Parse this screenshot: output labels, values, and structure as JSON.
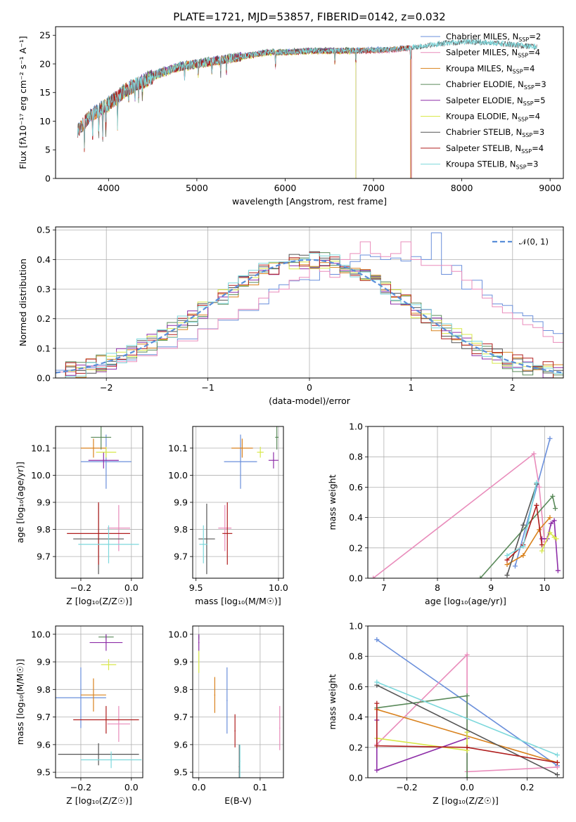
{
  "colors": {
    "Chabrier MILES": "#6a8fdb",
    "Salpeter MILES": "#e98cbb",
    "Kroupa MILES": "#d9821e",
    "Chabrier ELODIE": "#5a8a5a",
    "Salpeter ELODIE": "#8e2fa8",
    "Kroupa ELODIE": "#d8e84a",
    "Chabrier STELIB": "#555555",
    "Salpeter STELIB": "#b01f1f",
    "Kroupa STELIB": "#7dd8dc"
  },
  "chart_data": [
    {
      "id": "spectrum",
      "type": "line",
      "title": "PLATE=1721, MJD=53857, FIBERID=0142, z=0.032",
      "xlabel": "wavelength [Angstrom, rest frame]",
      "ylabel": "Flux [fλ10⁻¹⁷ erg cm⁻² s⁻¹ A⁻¹]",
      "xlim": [
        3400,
        9150
      ],
      "ylim": [
        0,
        26.5
      ],
      "xticks": [
        4000,
        5000,
        6000,
        7000,
        8000,
        9000
      ],
      "yticks": [
        0,
        5,
        10,
        15,
        20,
        25
      ],
      "legend_loc": "upper right",
      "legend": [
        {
          "label": "Chabrier MILES, N",
          "sub": "SSP",
          "tail": "=2",
          "model": "Chabrier MILES"
        },
        {
          "label": "Salpeter MILES, N",
          "sub": "SSP",
          "tail": "=4",
          "model": "Salpeter MILES"
        },
        {
          "label": "Kroupa MILES, N",
          "sub": "SSP",
          "tail": "=4",
          "model": "Kroupa MILES"
        },
        {
          "label": "Chabrier ELODIE, N",
          "sub": "SSP",
          "tail": "=3",
          "model": "Chabrier ELODIE"
        },
        {
          "label": "Salpeter ELODIE, N",
          "sub": "SSP",
          "tail": "=5",
          "model": "Salpeter ELODIE"
        },
        {
          "label": "Kroupa ELODIE, N",
          "sub": "SSP",
          "tail": "=4",
          "model": "Kroupa ELODIE"
        },
        {
          "label": "Chabrier STELIB, N",
          "sub": "SSP",
          "tail": "=3",
          "model": "Chabrier STELIB"
        },
        {
          "label": "Salpeter STELIB, N",
          "sub": "SSP",
          "tail": "=4",
          "model": "Salpeter STELIB"
        },
        {
          "label": "Kroupa STELIB, N",
          "sub": "SSP",
          "tail": "=3",
          "model": "Kroupa STELIB"
        }
      ],
      "continuum": {
        "x": [
          3650,
          3800,
          4000,
          4200,
          4400,
          4600,
          4800,
          5000,
          5200,
          5400,
          5600,
          5800,
          6000,
          6200,
          6400,
          6600,
          6800,
          7000,
          7200,
          7400,
          7600,
          7800,
          8000,
          8200,
          8400,
          8600,
          8800
        ],
        "y": [
          8.5,
          11.0,
          13.0,
          15.5,
          17.0,
          18.5,
          19.5,
          20.0,
          20.5,
          21.0,
          21.5,
          22.0,
          22.0,
          22.2,
          22.3,
          22.3,
          22.3,
          22.4,
          22.5,
          22.8,
          23.2,
          23.6,
          23.8,
          23.8,
          23.6,
          23.3,
          23.0
        ]
      },
      "spectra": [
        {
          "model": "Chabrier MILES",
          "xmin": 3650,
          "xmax": 7420,
          "offset": 0.1
        },
        {
          "model": "Salpeter MILES",
          "xmin": 3650,
          "xmax": 7420,
          "offset": -0.1
        },
        {
          "model": "Kroupa MILES",
          "xmin": 3650,
          "xmax": 7420,
          "offset": 0.0
        },
        {
          "model": "Chabrier ELODIE",
          "xmin": 3900,
          "xmax": 6800,
          "offset": 0.15
        },
        {
          "model": "Salpeter ELODIE",
          "xmin": 3900,
          "xmax": 6800,
          "offset": 0.05
        },
        {
          "model": "Kroupa ELODIE",
          "xmin": 3900,
          "xmax": 6800,
          "offset": -0.15
        },
        {
          "model": "Chabrier STELIB",
          "xmin": 3650,
          "xmax": 8850,
          "offset": 0.0
        },
        {
          "model": "Salpeter STELIB",
          "xmin": 3650,
          "xmax": 7430,
          "offset": -0.05
        },
        {
          "model": "Kroupa STELIB",
          "xmin": 3650,
          "xmax": 8850,
          "offset": 0.05
        }
      ]
    },
    {
      "id": "residuals",
      "type": "bar",
      "xlabel": "(data-model)/error",
      "ylabel": "Normed distribution",
      "xlim": [
        -2.5,
        2.5
      ],
      "ylim": [
        0,
        0.51
      ],
      "xticks": [
        -2,
        -1,
        0,
        1,
        2
      ],
      "yticks": [
        0.0,
        0.1,
        0.2,
        0.3,
        0.4,
        0.5
      ],
      "grid": true,
      "legend_loc": "upper right",
      "legend_label": "𝒩(0, 1)",
      "gaussian_color": "#5b8fd9",
      "bin_width": 0.1,
      "bin_start": -2.5,
      "series": [
        {
          "model": "Chabrier MILES",
          "values": [
            0.026,
            0.026,
            0.035,
            0.035,
            0.044,
            0.044,
            0.061,
            0.061,
            0.079,
            0.079,
            0.105,
            0.105,
            0.132,
            0.132,
            0.166,
            0.166,
            0.195,
            0.195,
            0.228,
            0.228,
            0.25,
            0.3,
            0.315,
            0.328,
            0.332,
            0.33,
            0.38,
            0.35,
            0.37,
            0.393,
            0.415,
            0.41,
            0.4,
            0.405,
            0.395,
            0.41,
            0.4,
            0.49,
            0.35,
            0.38,
            0.3,
            0.33,
            0.28,
            0.25,
            0.245,
            0.22,
            0.21,
            0.19,
            0.16,
            0.15,
            0.13,
            0.11,
            0.1,
            0.09,
            0.08,
            0.07,
            0.055,
            0.05,
            0.04,
            0.035
          ]
        },
        {
          "model": "Salpeter MILES",
          "values": [
            0.02,
            0.02,
            0.03,
            0.03,
            0.04,
            0.04,
            0.055,
            0.055,
            0.075,
            0.075,
            0.1,
            0.1,
            0.125,
            0.125,
            0.165,
            0.165,
            0.2,
            0.2,
            0.232,
            0.232,
            0.27,
            0.29,
            0.3,
            0.33,
            0.34,
            0.37,
            0.36,
            0.34,
            0.4,
            0.42,
            0.46,
            0.42,
            0.41,
            0.42,
            0.46,
            0.4,
            0.38,
            0.38,
            0.38,
            0.36,
            0.33,
            0.3,
            0.27,
            0.24,
            0.22,
            0.2,
            0.18,
            0.17,
            0.14,
            0.12,
            0.11,
            0.1,
            0.09,
            0.08,
            0.07,
            0.06,
            0.05,
            0.05,
            0.04,
            0.035
          ]
        }
      ]
    },
    {
      "id": "age_vs_Z",
      "type": "scatter",
      "xlabel": "Z [log₁₀(Z/Z☉)]",
      "ylabel": "age  [log₁₀(age/yr)]",
      "xlim": [
        -0.3,
        0.045
      ],
      "ylim": [
        9.62,
        10.18
      ],
      "xticks": [
        -0.2,
        0.0
      ],
      "yticks": [
        9.7,
        9.8,
        9.9,
        10.0,
        10.1
      ],
      "grid": true,
      "points": [
        {
          "model": "Chabrier MILES",
          "x": -0.1,
          "y": 10.05,
          "xerr": 0.1,
          "yerr": 0.1
        },
        {
          "model": "Salpeter MILES",
          "x": -0.05,
          "y": 9.805,
          "xerr": 0.045,
          "yerr": 0.085
        },
        {
          "model": "Kroupa MILES",
          "x": -0.15,
          "y": 10.1,
          "xerr": 0.05,
          "yerr": 0.035
        },
        {
          "model": "Chabrier ELODIE",
          "x": -0.12,
          "y": 10.14,
          "xerr": 0.04,
          "yerr": 0.045
        },
        {
          "model": "Salpeter ELODIE",
          "x": -0.11,
          "y": 10.055,
          "xerr": 0.06,
          "yerr": 0.03
        },
        {
          "model": "Kroupa ELODIE",
          "x": -0.1,
          "y": 10.085,
          "xerr": 0.04,
          "yerr": 0.02
        },
        {
          "model": "Chabrier STELIB",
          "x": -0.13,
          "y": 9.765,
          "xerr": 0.1,
          "yerr": 0.13
        },
        {
          "model": "Salpeter STELIB",
          "x": -0.13,
          "y": 9.785,
          "xerr": 0.125,
          "yerr": 0.115
        },
        {
          "model": "Kroupa STELIB",
          "x": -0.09,
          "y": 9.745,
          "xerr": 0.12,
          "yerr": 0.07
        }
      ]
    },
    {
      "id": "age_vs_mass",
      "type": "scatter",
      "xlabel": "mass [log₁₀(M/M☉)]",
      "ylabel": "",
      "xlim": [
        9.48,
        10.03
      ],
      "ylim": [
        9.62,
        10.18
      ],
      "xticks": [
        9.5,
        10.0
      ],
      "yticks": [
        9.7,
        9.8,
        9.9,
        10.0,
        10.1
      ],
      "grid": true,
      "points": [
        {
          "model": "Chabrier MILES",
          "x": 9.77,
          "y": 10.05,
          "xerr": 0.1,
          "yerr": 0.1
        },
        {
          "model": "Salpeter MILES",
          "x": 9.675,
          "y": 9.805,
          "xerr": 0.04,
          "yerr": 0.085
        },
        {
          "model": "Kroupa MILES",
          "x": 9.78,
          "y": 10.1,
          "xerr": 0.065,
          "yerr": 0.035
        },
        {
          "model": "Chabrier ELODIE",
          "x": 9.99,
          "y": 10.14,
          "xerr": 0.01,
          "yerr": 0.045
        },
        {
          "model": "Salpeter ELODIE",
          "x": 9.97,
          "y": 10.055,
          "xerr": 0.03,
          "yerr": 0.03
        },
        {
          "model": "Kroupa ELODIE",
          "x": 9.89,
          "y": 10.085,
          "xerr": 0.02,
          "yerr": 0.02
        },
        {
          "model": "Chabrier STELIB",
          "x": 9.565,
          "y": 9.765,
          "xerr": 0.05,
          "yerr": 0.13
        },
        {
          "model": "Salpeter STELIB",
          "x": 9.69,
          "y": 9.785,
          "xerr": 0.03,
          "yerr": 0.115
        },
        {
          "model": "Kroupa STELIB",
          "x": 9.545,
          "y": 9.745,
          "xerr": 0.025,
          "yerr": 0.07
        }
      ]
    },
    {
      "id": "weight_vs_age",
      "type": "line",
      "xlabel": "age  [log₁₀(age/yr)]",
      "ylabel": "mass weight",
      "xlim": [
        6.7,
        10.35
      ],
      "ylim": [
        0,
        1.0
      ],
      "xticks": [
        7,
        8,
        9,
        10
      ],
      "yticks": [
        0.0,
        0.2,
        0.4,
        0.6,
        0.8,
        1.0
      ],
      "grid": true,
      "series": [
        {
          "model": "Chabrier MILES",
          "x": [
            9.45,
            10.1
          ],
          "y": [
            0.08,
            0.92
          ]
        },
        {
          "model": "Salpeter MILES",
          "x": [
            6.8,
            9.8,
            9.9,
            10.0
          ],
          "y": [
            0.0,
            0.82,
            0.6,
            0.24
          ]
        },
        {
          "model": "Kroupa MILES",
          "x": [
            9.3,
            9.6,
            9.9,
            10.1
          ],
          "y": [
            0.09,
            0.15,
            0.32,
            0.4
          ]
        },
        {
          "model": "Chabrier ELODIE",
          "x": [
            8.8,
            10.15,
            10.2
          ],
          "y": [
            0.0,
            0.54,
            0.46
          ]
        },
        {
          "model": "Salpeter ELODIE",
          "x": [
            9.95,
            10.05,
            10.12,
            10.18,
            10.25
          ],
          "y": [
            0.26,
            0.26,
            0.36,
            0.38,
            0.05
          ]
        },
        {
          "model": "Kroupa ELODIE",
          "x": [
            9.95,
            10.1,
            10.18,
            10.22
          ],
          "y": [
            0.18,
            0.3,
            0.27,
            0.26
          ]
        },
        {
          "model": "Chabrier STELIB",
          "x": [
            9.3,
            9.6,
            9.85
          ],
          "y": [
            0.02,
            0.35,
            0.62
          ]
        },
        {
          "model": "Salpeter STELIB",
          "x": [
            9.3,
            9.6,
            9.85,
            9.95
          ],
          "y": [
            0.12,
            0.22,
            0.48,
            0.22
          ]
        },
        {
          "model": "Kroupa STELIB",
          "x": [
            9.3,
            9.6,
            9.85
          ],
          "y": [
            0.15,
            0.21,
            0.63
          ]
        }
      ]
    },
    {
      "id": "mass_vs_Z",
      "type": "scatter",
      "xlabel": "Z [log₁₀(Z/Z☉)]",
      "ylabel": "mass [log₁₀(M/M☉)]",
      "xlim": [
        -0.3,
        0.045
      ],
      "ylim": [
        9.48,
        10.03
      ],
      "xticks": [
        -0.2,
        0.0
      ],
      "yticks": [
        9.5,
        9.6,
        9.7,
        9.8,
        9.9,
        10.0
      ],
      "grid": true,
      "points": [
        {
          "model": "Chabrier MILES",
          "x": -0.2,
          "y": 9.77,
          "xerr": 0.1,
          "yerr": 0.11
        },
        {
          "model": "Salpeter MILES",
          "x": -0.05,
          "y": 9.675,
          "xerr": 0.045,
          "yerr": 0.065
        },
        {
          "model": "Kroupa MILES",
          "x": -0.15,
          "y": 9.78,
          "xerr": 0.05,
          "yerr": 0.06
        },
        {
          "model": "Chabrier ELODIE",
          "x": -0.1,
          "y": 9.99,
          "xerr": 0.03,
          "yerr": 0.01
        },
        {
          "model": "Salpeter ELODIE",
          "x": -0.1,
          "y": 9.97,
          "xerr": 0.065,
          "yerr": 0.03
        },
        {
          "model": "Kroupa ELODIE",
          "x": -0.09,
          "y": 9.89,
          "xerr": 0.03,
          "yerr": 0.02
        },
        {
          "model": "Chabrier STELIB",
          "x": -0.13,
          "y": 9.565,
          "xerr": 0.16,
          "yerr": 0.04
        },
        {
          "model": "Salpeter STELIB",
          "x": -0.1,
          "y": 9.69,
          "xerr": 0.13,
          "yerr": 0.05
        },
        {
          "model": "Kroupa STELIB",
          "x": -0.08,
          "y": 9.545,
          "xerr": 0.12,
          "yerr": 0.03
        }
      ]
    },
    {
      "id": "mass_vs_EBV",
      "type": "scatter",
      "xlabel": "E(B-V)",
      "ylabel": "",
      "xlim": [
        -0.01,
        0.138
      ],
      "ylim": [
        9.48,
        10.03
      ],
      "xticks": [
        0.0,
        0.1
      ],
      "yticks": [
        9.5,
        9.6,
        9.7,
        9.8,
        9.9,
        10.0
      ],
      "grid": true,
      "points": [
        {
          "model": "Chabrier MILES",
          "x": 0.046,
          "y": 9.76,
          "xerr": 0,
          "yerr": 0.12
        },
        {
          "model": "Salpeter MILES",
          "x": 0.132,
          "y": 9.66,
          "xerr": 0,
          "yerr": 0.08
        },
        {
          "model": "Kroupa MILES",
          "x": 0.026,
          "y": 9.78,
          "xerr": 0,
          "yerr": 0.065
        },
        {
          "model": "Chabrier ELODIE",
          "x": 0.0,
          "y": 9.99,
          "xerr": 0,
          "yerr": 0.01
        },
        {
          "model": "Salpeter ELODIE",
          "x": 0.0,
          "y": 9.97,
          "xerr": 0,
          "yerr": 0.03
        },
        {
          "model": "Kroupa ELODIE",
          "x": 0.0,
          "y": 9.9,
          "xerr": 0,
          "yerr": 0.04
        },
        {
          "model": "Chabrier STELIB",
          "x": 0.066,
          "y": 9.52,
          "xerr": 0,
          "yerr": 0.08
        },
        {
          "model": "Salpeter STELIB",
          "x": 0.059,
          "y": 9.65,
          "xerr": 0,
          "yerr": 0.06
        },
        {
          "model": "Kroupa STELIB",
          "x": 0.067,
          "y": 9.54,
          "xerr": 0,
          "yerr": 0.06
        }
      ]
    },
    {
      "id": "weight_vs_Z",
      "type": "line",
      "xlabel": "Z [log₁₀(Z/Z☉)]",
      "ylabel": "mass weight",
      "xlim": [
        -0.33,
        0.32
      ],
      "ylim": [
        0,
        1.0
      ],
      "xticks": [
        -0.2,
        0.0,
        0.2
      ],
      "yticks": [
        0.0,
        0.2,
        0.4,
        0.6,
        0.8,
        1.0
      ],
      "grid": true,
      "series": [
        {
          "model": "Chabrier MILES",
          "x": [
            -0.3,
            0.3
          ],
          "y": [
            0.91,
            0.08
          ]
        },
        {
          "model": "Salpeter MILES",
          "x": [
            -0.3,
            0.0,
            0.0,
            0.3
          ],
          "y": [
            0.22,
            0.81,
            0.04,
            0.07
          ]
        },
        {
          "model": "Kroupa MILES",
          "x": [
            -0.3,
            0.3
          ],
          "y": [
            0.45,
            0.1
          ]
        },
        {
          "model": "Chabrier ELODIE",
          "x": [
            -0.3,
            0.0,
            0.0
          ],
          "y": [
            0.46,
            0.54,
            0.0
          ]
        },
        {
          "model": "Salpeter ELODIE",
          "x": [
            -0.3,
            -0.3,
            0.0,
            0.0
          ],
          "y": [
            0.38,
            0.05,
            0.26,
            0.3
          ]
        },
        {
          "model": "Kroupa ELODIE",
          "x": [
            -0.3,
            0.0,
            0.0
          ],
          "y": [
            0.26,
            0.18,
            0.3
          ]
        },
        {
          "model": "Chabrier STELIB",
          "x": [
            -0.3,
            0.3
          ],
          "y": [
            0.61,
            0.02
          ]
        },
        {
          "model": "Salpeter STELIB",
          "x": [
            -0.3,
            -0.3,
            0.0,
            0.3
          ],
          "y": [
            0.49,
            0.21,
            0.2,
            0.1
          ]
        },
        {
          "model": "Kroupa STELIB",
          "x": [
            -0.3,
            0.3
          ],
          "y": [
            0.63,
            0.15
          ]
        }
      ]
    }
  ]
}
